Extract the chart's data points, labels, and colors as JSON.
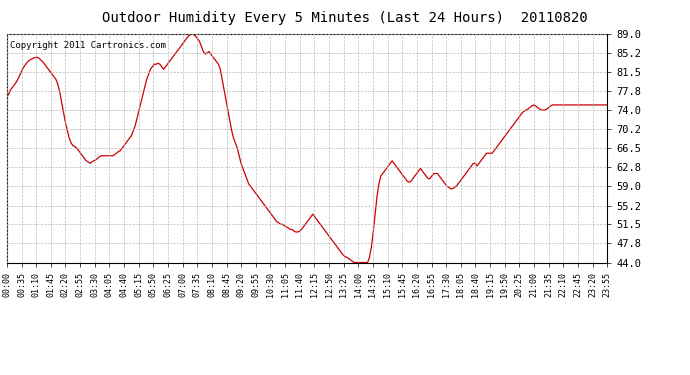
{
  "title": "Outdoor Humidity Every 5 Minutes (Last 24 Hours)  20110820",
  "copyright_text": "Copyright 2011 Cartronics.com",
  "line_color": "#cc0000",
  "background_color": "#ffffff",
  "plot_bg_color": "#ffffff",
  "grid_color": "#bbbbbb",
  "ylim": [
    44.0,
    89.0
  ],
  "yticks": [
    44.0,
    47.8,
    51.5,
    55.2,
    59.0,
    62.8,
    66.5,
    70.2,
    74.0,
    77.8,
    81.5,
    85.2,
    89.0
  ],
  "xtick_labels": [
    "00:00",
    "00:35",
    "01:10",
    "01:45",
    "02:20",
    "02:55",
    "03:30",
    "04:05",
    "04:40",
    "05:15",
    "05:50",
    "06:25",
    "07:00",
    "07:35",
    "08:10",
    "08:45",
    "09:20",
    "09:55",
    "10:30",
    "11:05",
    "11:40",
    "12:15",
    "12:50",
    "13:25",
    "14:00",
    "14:35",
    "15:10",
    "15:45",
    "16:20",
    "16:55",
    "17:30",
    "18:05",
    "18:40",
    "19:15",
    "19:50",
    "20:25",
    "21:00",
    "21:35",
    "22:10",
    "22:45",
    "23:20",
    "23:55"
  ],
  "data_values": [
    76.5,
    77.2,
    78.0,
    78.5,
    79.0,
    79.5,
    80.2,
    81.0,
    81.8,
    82.5,
    83.0,
    83.5,
    83.8,
    84.0,
    84.2,
    84.3,
    84.4,
    84.2,
    83.8,
    83.5,
    83.0,
    82.5,
    82.0,
    81.5,
    81.0,
    80.5,
    80.0,
    79.0,
    77.5,
    75.5,
    73.5,
    71.5,
    70.0,
    68.5,
    67.5,
    67.0,
    66.8,
    66.5,
    66.0,
    65.5,
    65.0,
    64.5,
    64.0,
    63.8,
    63.5,
    63.8,
    64.0,
    64.2,
    64.5,
    64.8,
    65.0,
    65.0,
    65.0,
    65.0,
    65.0,
    65.0,
    65.0,
    65.2,
    65.5,
    65.8,
    66.0,
    66.5,
    67.0,
    67.5,
    68.0,
    68.5,
    69.0,
    70.0,
    71.0,
    72.5,
    74.0,
    75.5,
    77.0,
    78.5,
    80.0,
    81.0,
    82.0,
    82.5,
    83.0,
    83.0,
    83.2,
    83.0,
    82.5,
    82.0,
    82.5,
    83.0,
    83.5,
    84.0,
    84.5,
    85.0,
    85.5,
    86.0,
    86.5,
    87.0,
    87.5,
    88.0,
    88.5,
    88.8,
    89.0,
    88.8,
    88.5,
    88.0,
    87.5,
    86.5,
    85.5,
    85.0,
    85.2,
    85.5,
    85.0,
    84.5,
    84.0,
    83.5,
    83.0,
    82.0,
    80.0,
    78.0,
    76.0,
    74.0,
    72.0,
    70.0,
    68.5,
    67.5,
    66.5,
    65.0,
    63.5,
    62.5,
    61.5,
    60.5,
    59.5,
    59.0,
    58.5,
    58.0,
    57.5,
    57.0,
    56.5,
    56.0,
    55.5,
    55.0,
    54.5,
    54.0,
    53.5,
    53.0,
    52.5,
    52.0,
    51.8,
    51.5,
    51.5,
    51.2,
    51.0,
    50.8,
    50.5,
    50.5,
    50.2,
    50.0,
    50.0,
    50.2,
    50.5,
    51.0,
    51.5,
    52.0,
    52.5,
    53.0,
    53.5,
    53.0,
    52.5,
    52.0,
    51.5,
    51.0,
    50.5,
    50.0,
    49.5,
    49.0,
    48.5,
    48.0,
    47.5,
    47.0,
    46.5,
    46.0,
    45.5,
    45.2,
    45.0,
    44.8,
    44.5,
    44.2,
    44.0,
    44.0,
    44.0,
    44.0,
    44.0,
    44.0,
    44.0,
    44.0,
    45.0,
    47.0,
    50.0,
    53.5,
    57.0,
    59.5,
    61.0,
    61.5,
    62.0,
    62.5,
    63.0,
    63.5,
    64.0,
    63.5,
    63.0,
    62.5,
    62.0,
    61.5,
    61.0,
    60.5,
    60.0,
    59.8,
    60.0,
    60.5,
    61.0,
    61.5,
    62.0,
    62.5,
    62.0,
    61.5,
    61.0,
    60.5,
    60.5,
    61.0,
    61.5,
    61.5,
    61.5,
    61.0,
    60.5,
    60.0,
    59.5,
    59.0,
    58.8,
    58.5,
    58.5,
    58.8,
    59.0,
    59.5,
    60.0,
    60.5,
    61.0,
    61.5,
    62.0,
    62.5,
    63.0,
    63.5,
    63.5,
    63.0,
    63.5,
    64.0,
    64.5,
    65.0,
    65.5,
    65.5,
    65.5,
    65.5,
    66.0,
    66.5,
    67.0,
    67.5,
    68.0,
    68.5,
    69.0,
    69.5,
    70.0,
    70.5,
    71.0,
    71.5,
    72.0,
    72.5,
    73.0,
    73.5,
    73.8,
    74.0,
    74.2,
    74.5,
    74.8,
    75.0,
    74.8,
    74.5,
    74.2,
    74.0,
    74.0,
    74.0,
    74.2,
    74.5,
    74.8,
    75.0,
    75.0,
    75.0,
    75.0,
    75.0,
    75.0,
    75.0,
    75.0,
    75.0,
    75.0,
    75.0,
    75.0,
    75.0,
    75.0,
    75.0,
    75.0,
    75.0,
    75.0,
    75.0,
    75.0,
    75.0,
    75.0,
    75.0,
    75.0,
    75.0,
    75.0,
    75.0,
    75.0,
    75.0,
    75.0,
    75.0
  ]
}
